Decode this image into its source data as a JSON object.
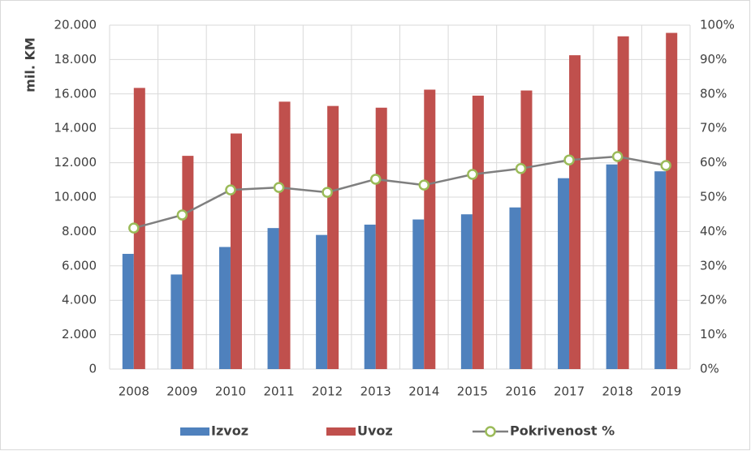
{
  "chart_data": {
    "type": "bar",
    "y_label": "mil. KM",
    "categories": [
      "2008",
      "2009",
      "2010",
      "2011",
      "2012",
      "2013",
      "2014",
      "2015",
      "2016",
      "2017",
      "2018",
      "2019"
    ],
    "series": [
      {
        "name": "Izvoz",
        "color": "#4f81bd",
        "values": [
          6700,
          5500,
          7100,
          8200,
          7800,
          8400,
          8700,
          9000,
          9400,
          11100,
          11900,
          11500
        ]
      },
      {
        "name": "Uvoz",
        "color": "#c0504d",
        "values": [
          16350,
          12400,
          13700,
          15550,
          15300,
          15200,
          16250,
          15900,
          16200,
          18250,
          19350,
          19550
        ]
      },
      {
        "name": "Pokrivenost %",
        "color": "#7f7f7f",
        "marker_color": "#9bbb59",
        "type": "line",
        "axis": "y2",
        "values": [
          41,
          44.8,
          52.1,
          52.8,
          51.4,
          55.2,
          53.5,
          56.6,
          58.3,
          60.8,
          61.8,
          59.2
        ]
      }
    ],
    "ylim": [
      0,
      20000
    ],
    "yticks": [
      0,
      {
        "value": 2000,
        "label": "2.000"
      },
      {
        "value": 4000,
        "label": "4.000"
      },
      {
        "value": 6000,
        "label": "6.000"
      },
      {
        "value": 8000,
        "label": "8.000"
      },
      {
        "value": 10000,
        "label": "10.000"
      },
      {
        "value": 12000,
        "label": "12.000"
      },
      {
        "value": 14000,
        "label": "14.000"
      },
      {
        "value": 16000,
        "label": "16.000"
      },
      {
        "value": 18000,
        "label": "18.000"
      },
      {
        "value": 20000,
        "label": "20.000"
      }
    ],
    "y2lim": [
      0,
      100
    ],
    "y2ticks": [
      {
        "value": 0,
        "label": "0%"
      },
      {
        "value": 10,
        "label": "10%"
      },
      {
        "value": 20,
        "label": "20%"
      },
      {
        "value": 30,
        "label": "30%"
      },
      {
        "value": 40,
        "label": "40%"
      },
      {
        "value": 50,
        "label": "50%"
      },
      {
        "value": 60,
        "label": "60%"
      },
      {
        "value": 70,
        "label": "70%"
      },
      {
        "value": 80,
        "label": "80%"
      },
      {
        "value": 90,
        "label": "90%"
      },
      {
        "value": 100,
        "label": "100%"
      }
    ],
    "grid": true,
    "legend": "bottom"
  }
}
